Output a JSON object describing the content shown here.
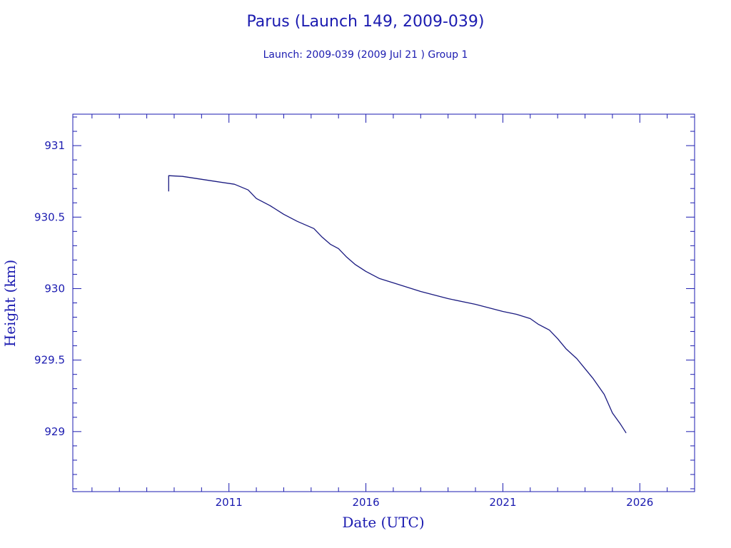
{
  "chart_data": {
    "type": "line",
    "title": "Parus (Launch 149, 2009-039)",
    "subtitle": "Launch: 2009-039  (2009 Jul 21 )  Group 1",
    "xlabel": "Date (UTC)",
    "ylabel": "Height (km)",
    "xlim": [
      2005.3,
      2028.0
    ],
    "ylim": [
      928.58,
      931.22
    ],
    "x_ticks": [
      2011,
      2016,
      2021,
      2026
    ],
    "x_tick_labels": [
      "2011",
      "2016",
      "2021",
      "2026"
    ],
    "y_ticks": [
      929,
      929.5,
      930,
      930.5,
      931
    ],
    "y_tick_labels": [
      "929",
      "929.5",
      "930",
      "930.5",
      "931"
    ],
    "grid": false,
    "colors": {
      "line": "#1a1a80",
      "text": "#1b1bb0",
      "axis": "#1b1bb0"
    },
    "series": [
      {
        "x": [
          2008.8,
          2008.8,
          2009.3,
          2010.5,
          2011.2,
          2011.7,
          2012.0,
          2012.5,
          2013.0,
          2013.5,
          2014.1,
          2014.4,
          2014.7,
          2015.0,
          2015.3,
          2015.6,
          2016.0,
          2016.5,
          2017.0,
          2018.0,
          2019.0,
          2020.0,
          2021.0,
          2021.5,
          2022.0,
          2022.3,
          2022.7,
          2023.0,
          2023.3,
          2023.7,
          2024.0,
          2024.3,
          2024.7,
          2025.0,
          2025.3,
          2025.5
        ],
        "y": [
          930.68,
          930.79,
          930.785,
          930.75,
          930.73,
          930.69,
          930.63,
          930.58,
          930.52,
          930.47,
          930.42,
          930.36,
          930.31,
          930.28,
          930.22,
          930.17,
          930.12,
          930.07,
          930.04,
          929.98,
          929.93,
          929.89,
          929.84,
          929.82,
          929.79,
          929.75,
          929.71,
          929.65,
          929.58,
          929.51,
          929.44,
          929.37,
          929.26,
          929.13,
          929.05,
          928.99
        ]
      }
    ]
  }
}
